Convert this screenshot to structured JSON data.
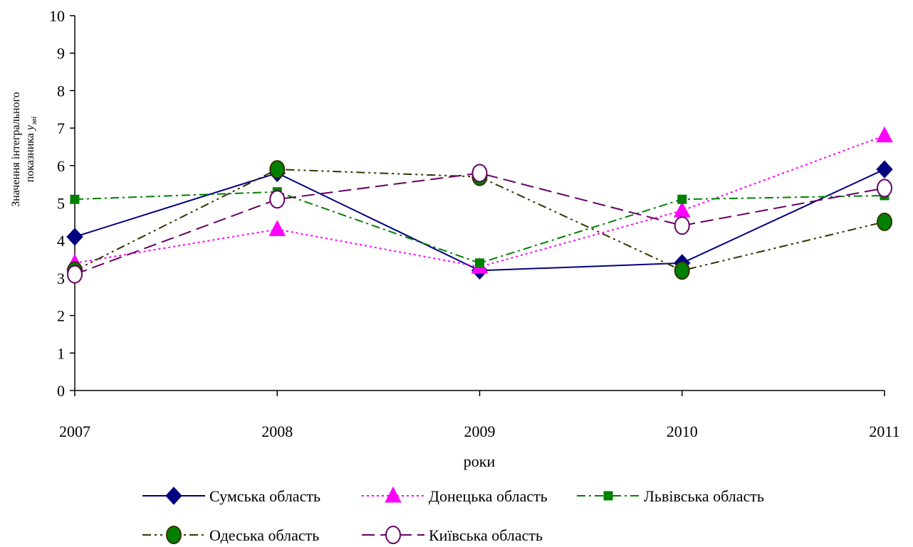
{
  "chart_data": {
    "type": "line",
    "x": [
      "2007",
      "2008",
      "2009",
      "2010",
      "2011"
    ],
    "xlabel": "роки",
    "ylabel_line1": "Значення інтегрального",
    "ylabel_line2": "показника",
    "ylabel_symbol": "y",
    "ylabel_subscript": "зві",
    "ylim": [
      0,
      10
    ],
    "yticks": [
      "0",
      "1",
      "2",
      "3",
      "4",
      "5",
      "6",
      "7",
      "8",
      "9",
      "10"
    ],
    "grid": false,
    "legend_position": "bottom",
    "series": [
      {
        "name": "Сумська область",
        "values": [
          4.1,
          5.8,
          3.2,
          3.4,
          5.9
        ],
        "color": "#000080",
        "dash": "solid",
        "marker": "diamond"
      },
      {
        "name": "Донецька область",
        "values": [
          3.4,
          4.3,
          3.3,
          4.8,
          6.8
        ],
        "color": "#ff00ff",
        "dash": "dotted",
        "marker": "triangle"
      },
      {
        "name": "Львівська область",
        "values": [
          5.1,
          5.3,
          3.4,
          5.1,
          5.2
        ],
        "color": "#008000",
        "dash": "dash-dot",
        "marker": "square"
      },
      {
        "name": "Одеська область",
        "values": [
          3.2,
          5.9,
          5.7,
          3.2,
          4.5
        ],
        "color": "#333300",
        "dash": "dash-dot-dot",
        "marker": "circle-filled"
      },
      {
        "name": "Київська область",
        "values": [
          3.1,
          5.1,
          5.8,
          4.4,
          5.4
        ],
        "color": "#660066",
        "dash": "long-dash",
        "marker": "circle-open"
      }
    ]
  }
}
